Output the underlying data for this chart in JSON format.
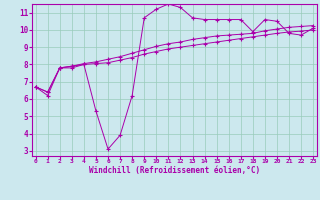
{
  "xlabel": "Windchill (Refroidissement éolien,°C)",
  "bg_color": "#cce8ee",
  "line_color": "#aa00aa",
  "grid_color": "#99ccbb",
  "x_ticks": [
    0,
    1,
    2,
    3,
    4,
    5,
    6,
    7,
    8,
    9,
    10,
    11,
    12,
    13,
    14,
    15,
    16,
    17,
    18,
    19,
    20,
    21,
    22,
    23
  ],
  "y_ticks": [
    3,
    4,
    5,
    6,
    7,
    8,
    9,
    10,
    11
  ],
  "xlim": [
    -0.3,
    23.3
  ],
  "ylim": [
    2.7,
    11.5
  ],
  "line1_x": [
    0,
    1,
    2,
    3,
    4,
    5,
    6,
    7,
    8,
    9,
    10,
    11,
    12,
    13,
    14,
    15,
    16,
    17,
    18,
    19,
    20,
    21,
    22,
    23
  ],
  "line1_y": [
    6.7,
    6.2,
    7.8,
    7.8,
    8.0,
    5.3,
    3.1,
    3.9,
    6.2,
    10.7,
    11.2,
    11.5,
    11.3,
    10.7,
    10.6,
    10.6,
    10.6,
    10.6,
    9.9,
    10.6,
    10.5,
    9.8,
    9.7,
    10.1
  ],
  "line2_x": [
    0,
    1,
    2,
    3,
    4,
    5,
    6,
    7,
    8,
    9,
    10,
    11,
    12,
    13,
    14,
    15,
    16,
    17,
    18,
    19,
    20,
    21,
    22,
    23
  ],
  "line2_y": [
    6.7,
    6.4,
    7.8,
    7.9,
    8.0,
    8.05,
    8.1,
    8.25,
    8.4,
    8.6,
    8.75,
    8.9,
    9.0,
    9.1,
    9.2,
    9.3,
    9.4,
    9.5,
    9.6,
    9.7,
    9.8,
    9.88,
    9.93,
    10.0
  ],
  "line3_x": [
    0,
    1,
    2,
    3,
    4,
    5,
    6,
    7,
    8,
    9,
    10,
    11,
    12,
    13,
    14,
    15,
    16,
    17,
    18,
    19,
    20,
    21,
    22,
    23
  ],
  "line3_y": [
    6.7,
    6.4,
    7.8,
    7.9,
    8.05,
    8.15,
    8.3,
    8.45,
    8.65,
    8.85,
    9.05,
    9.2,
    9.3,
    9.45,
    9.55,
    9.65,
    9.7,
    9.75,
    9.8,
    9.95,
    10.05,
    10.15,
    10.2,
    10.25
  ]
}
